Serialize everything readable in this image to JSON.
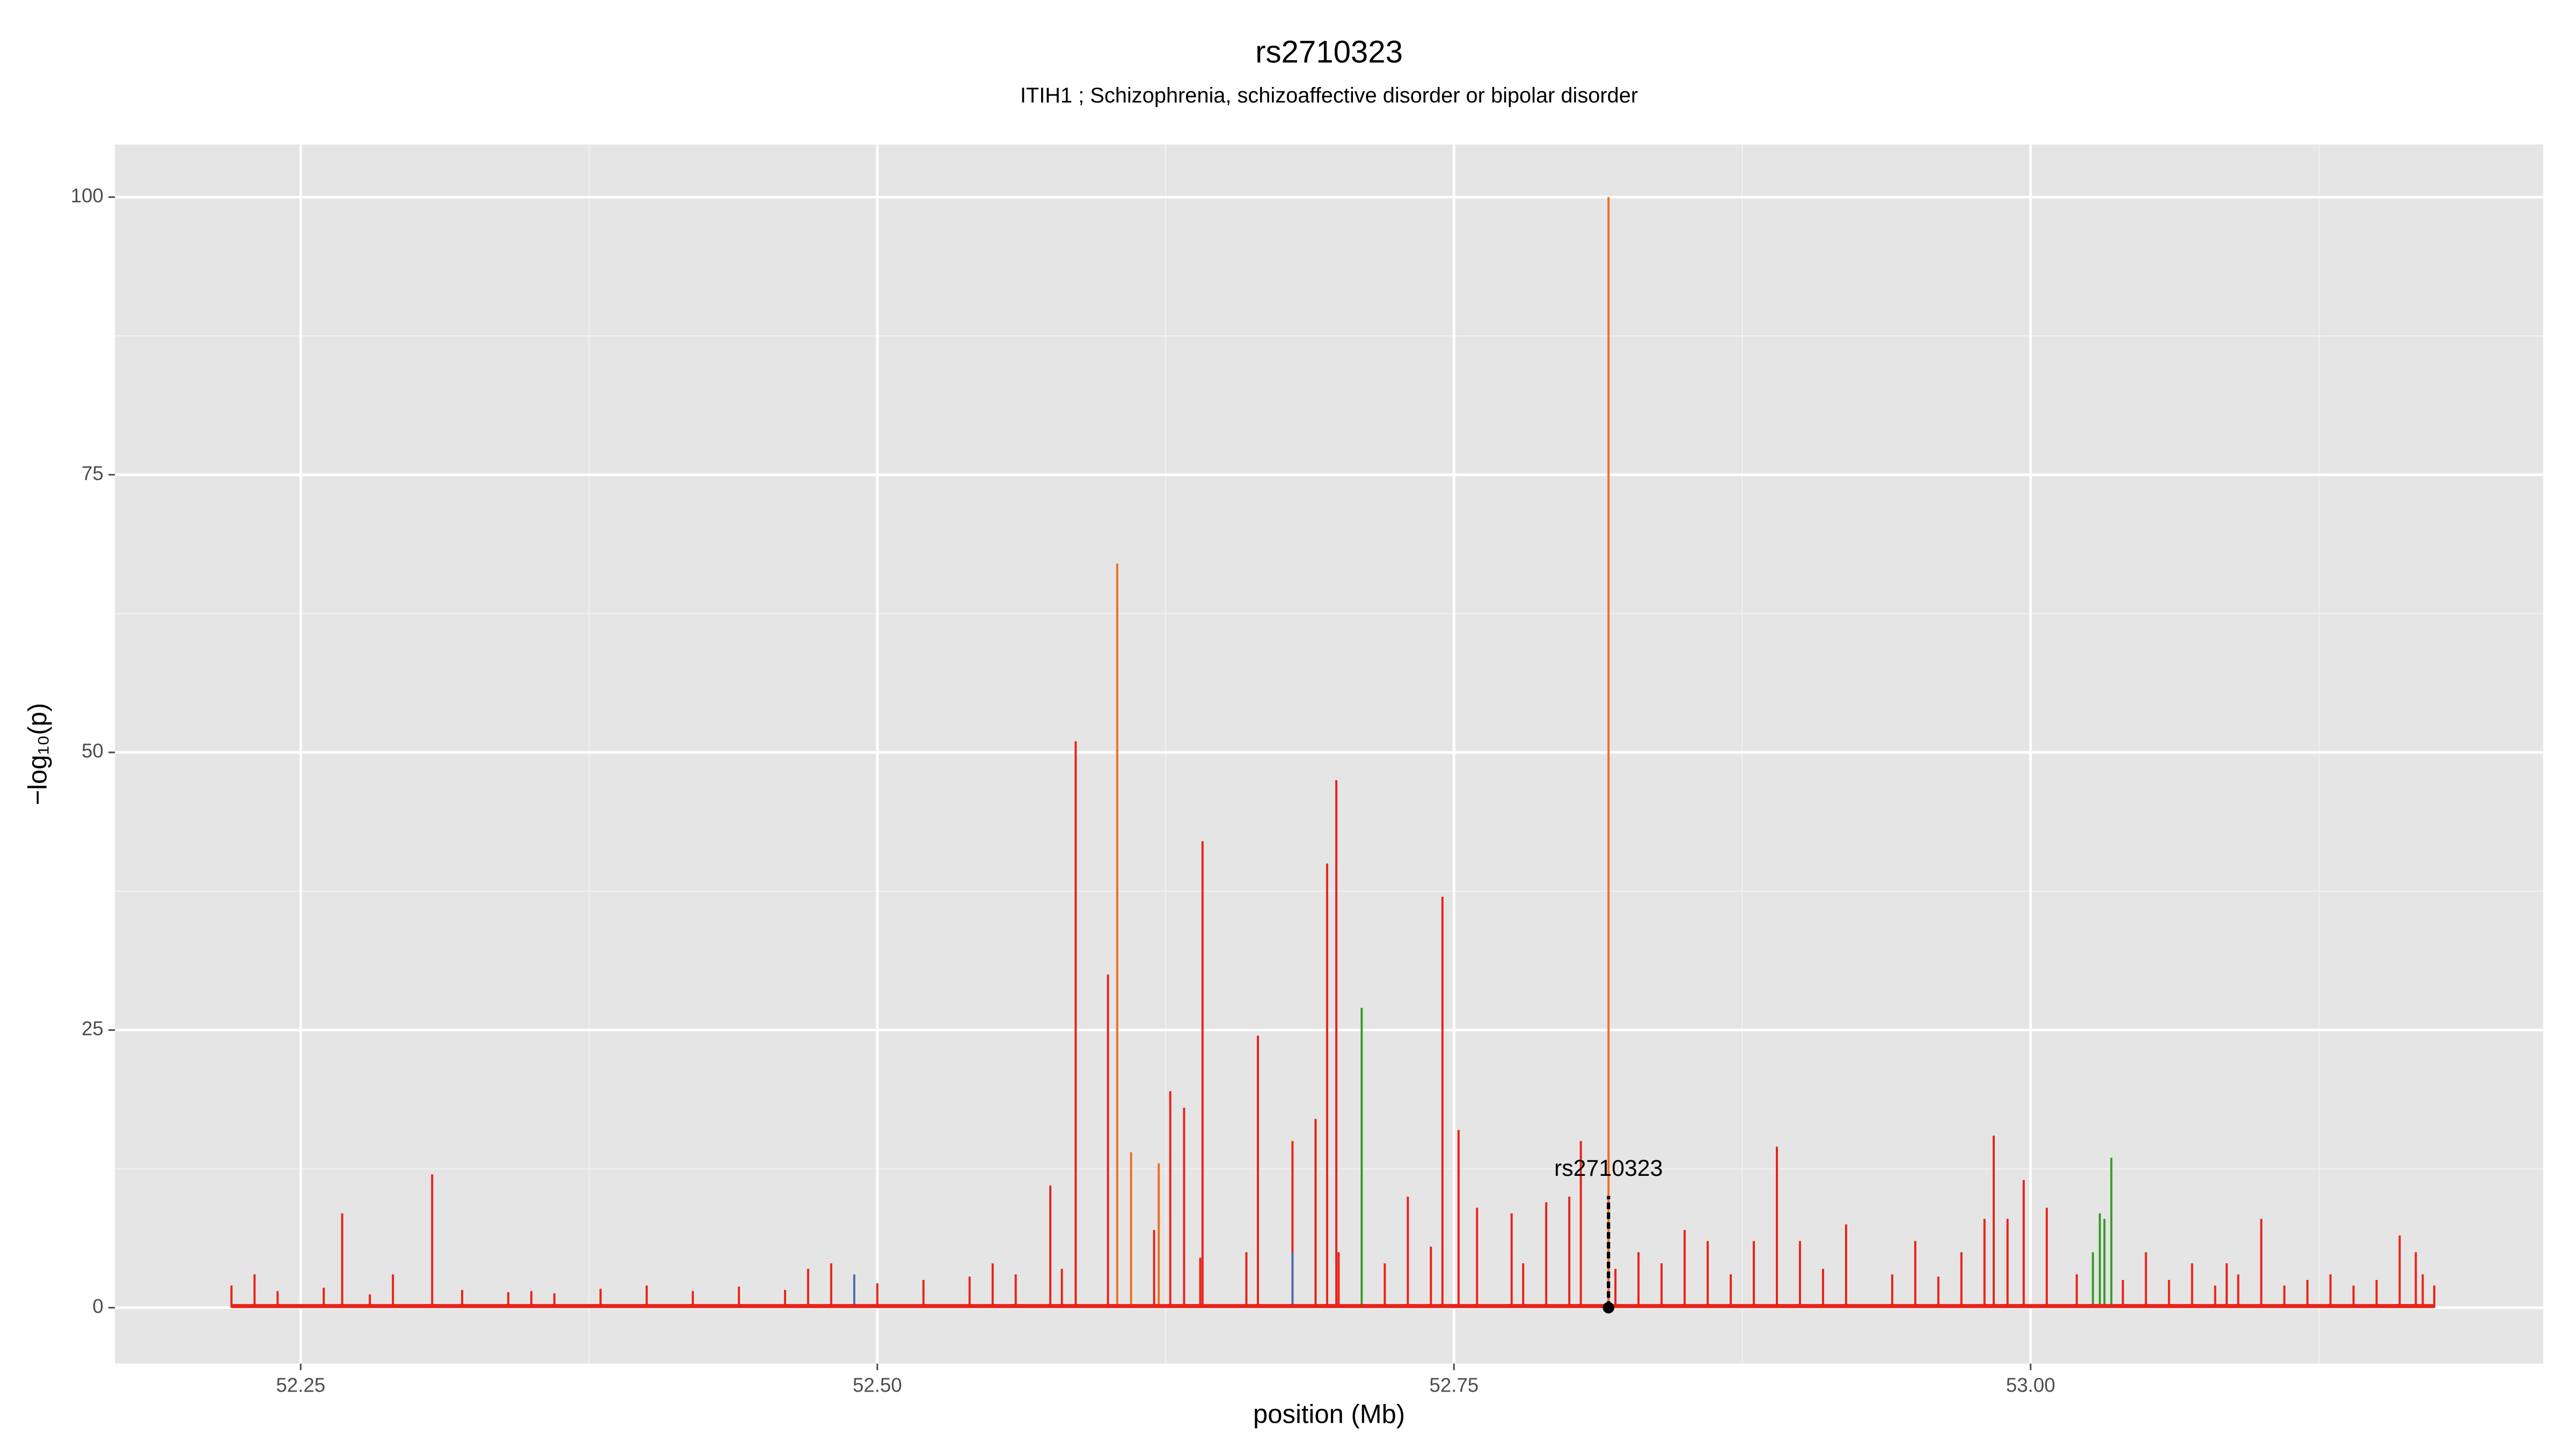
{
  "chart_data": {
    "type": "spike",
    "title": "rs2710323",
    "subtitle": "ITIH1 ; Schizophrenia, schizoaffective disorder or bipolar disorder",
    "xlabel": "position (Mb)",
    "ylabel": "−log₁₀(p)",
    "xlim": [
      52.1695,
      53.2222
    ],
    "ylim": [
      -5.03,
      104.73
    ],
    "xticks": [
      52.25,
      {
        "value": 52.5,
        "label": "52.50"
      },
      52.75,
      {
        "value": 53,
        "label": "53.00"
      }
    ],
    "yticks": [
      0,
      25,
      50,
      75,
      100
    ],
    "grid": true,
    "series": [
      {
        "name": "red",
        "color": "#e8231a",
        "x": [
          52.22,
          52.23,
          52.268,
          52.29,
          52.307,
          52.35,
          52.4,
          52.47,
          52.48,
          52.55,
          52.575,
          52.586,
          52.6,
          52.62,
          52.627,
          52.633,
          52.641,
          52.66,
          52.665,
          52.68,
          52.69,
          52.695,
          52.699,
          52.73,
          52.745,
          52.752,
          52.76,
          52.775,
          52.79,
          52.8,
          52.805,
          52.83,
          52.85,
          52.86,
          52.88,
          52.89,
          52.9,
          52.92,
          52.95,
          52.97,
          52.98,
          52.984,
          52.99,
          52.997,
          53.007,
          53.05,
          53.07,
          53.085,
          53.1,
          53.13,
          53.16,
          53.167,
          53.17,
          52.24,
          52.26,
          52.28,
          52.32,
          52.34,
          52.36,
          52.38,
          52.42,
          52.44,
          52.46,
          52.5,
          52.52,
          52.54,
          52.56,
          52.58,
          52.64,
          52.7,
          52.72,
          52.74,
          52.78,
          52.82,
          52.84,
          52.87,
          52.91,
          52.94,
          52.96,
          53.02,
          53.04,
          53.06,
          53.08,
          53.09,
          53.11,
          53.12,
          53.14,
          53.15,
          53.175
        ],
        "values": [
          2,
          3,
          8.5,
          3,
          12,
          1.5,
          2,
          3.5,
          4,
          4,
          11,
          51,
          30,
          7,
          19.5,
          18,
          42,
          5,
          24.5,
          15,
          17,
          40,
          47.5,
          10,
          37,
          16,
          9,
          8.5,
          9.5,
          10,
          15,
          5,
          7,
          6,
          6,
          14.5,
          6,
          7.5,
          6,
          5,
          8,
          15.5,
          8,
          11.5,
          9,
          5,
          4,
          4,
          8,
          3,
          6.5,
          5,
          3,
          1.5,
          1.8,
          1.2,
          1.6,
          1.4,
          1.3,
          1.7,
          1.5,
          1.9,
          1.6,
          2.2,
          2.5,
          2.8,
          3,
          3.5,
          4.5,
          5,
          4,
          5.5,
          4,
          3.5,
          4,
          3,
          3.5,
          3,
          2.8,
          3,
          2.5,
          2.5,
          2,
          3,
          2,
          2.5,
          2,
          2.5,
          2
        ]
      },
      {
        "name": "orange",
        "color": "#f06d22",
        "x": [
          52.604,
          52.61,
          52.622,
          52.817
        ],
        "values": [
          67,
          14,
          13,
          100
        ]
      },
      {
        "name": "green",
        "color": "#3a9a2a",
        "x": [
          52.71,
          53.027,
          53.03,
          53.032,
          53.035
        ],
        "values": [
          27,
          5,
          8.5,
          8,
          13.5
        ]
      },
      {
        "name": "blue",
        "color": "#4a6fb0",
        "x": [
          52.49,
          52.68
        ],
        "values": [
          3,
          5
        ]
      }
    ],
    "highlight": {
      "label": "rs2710323",
      "x": 52.817,
      "y": 0
    }
  }
}
